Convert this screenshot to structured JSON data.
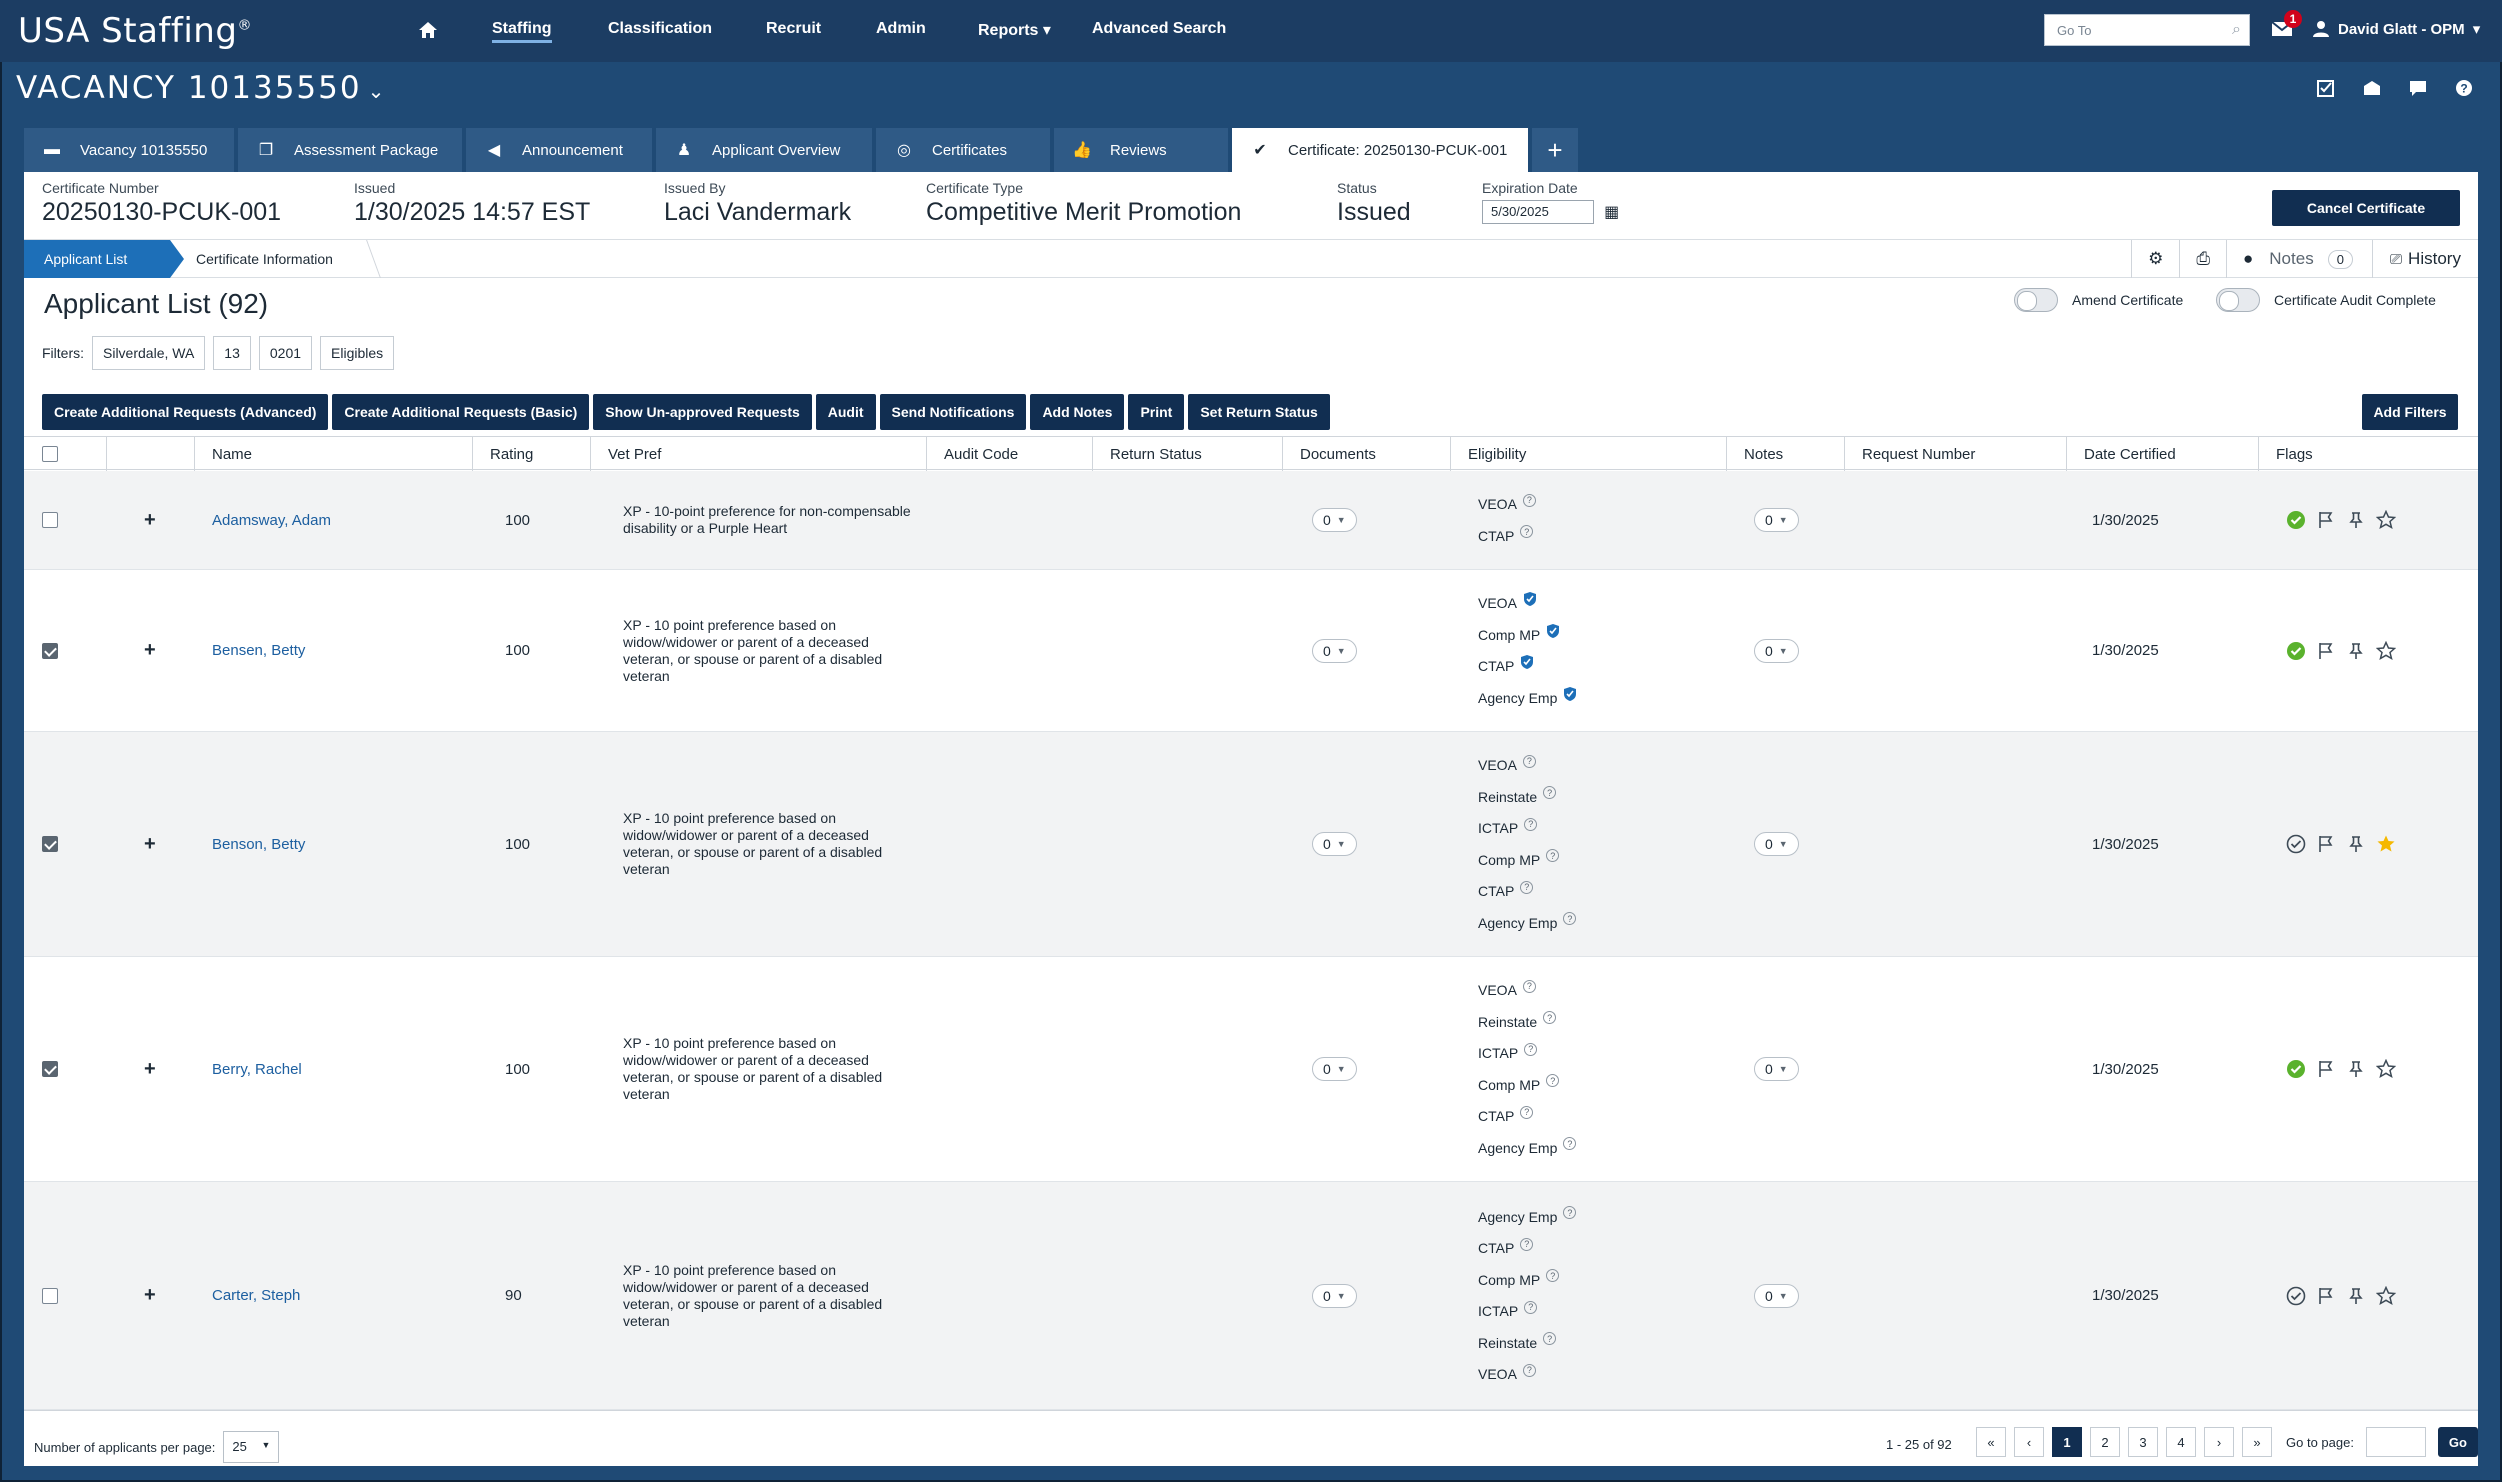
{
  "nav": {
    "brand": "USA Staffing",
    "brand_mark": "®",
    "items": [
      "Staffing",
      "Classification",
      "Recruit",
      "Admin",
      "Reports",
      "Advanced Search"
    ],
    "goto_placeholder": "Go To",
    "mail_count": "1",
    "user": "David Glatt - OPM"
  },
  "vacancy": {
    "title": "VACANCY 10135550"
  },
  "tabs": [
    {
      "label": "Vacancy 10135550",
      "icon": "briefcase-icon"
    },
    {
      "label": "Assessment Package",
      "icon": "copy-icon"
    },
    {
      "label": "Announcement",
      "icon": "megaphone-icon"
    },
    {
      "label": "Applicant Overview",
      "icon": "users-icon"
    },
    {
      "label": "Certificates",
      "icon": "check-circle-icon"
    },
    {
      "label": "Reviews",
      "icon": "thumbs-up-icon"
    },
    {
      "label": "Certificate: 20250130-PCUK-001",
      "icon": "check-badge-icon"
    }
  ],
  "cert": {
    "number_label": "Certificate Number",
    "number": "20250130-PCUK-001",
    "issued_label": "Issued",
    "issued": "1/30/2025 14:57 EST",
    "issued_by_label": "Issued By",
    "issued_by": "Laci Vandermark",
    "type_label": "Certificate Type",
    "type": "Competitive Merit Promotion",
    "status_label": "Status",
    "status": "Issued",
    "exp_label": "Expiration Date",
    "exp": "5/30/2025",
    "cancel": "Cancel Certificate"
  },
  "subnav": {
    "active": "Applicant List",
    "second": "Certificate Information",
    "notes_label": "Notes",
    "notes_count": "0",
    "history": "History"
  },
  "list": {
    "title": "Applicant List (92)",
    "amend": "Amend Certificate",
    "audit_complete": "Certificate Audit Complete",
    "filters_label": "Filters:",
    "filters": [
      "Silverdale, WA",
      "13",
      "0201",
      "Eligibles"
    ],
    "actions": [
      "Create Additional Requests (Advanced)",
      "Create Additional Requests (Basic)",
      "Show Un-approved Requests",
      "Audit",
      "Send Notifications",
      "Add Notes",
      "Print",
      "Set Return Status"
    ],
    "add_filters": "Add Filters"
  },
  "columns": [
    "Name",
    "Rating",
    "Vet Pref",
    "Audit Code",
    "Return Status",
    "Documents",
    "Eligibility",
    "Notes",
    "Request Number",
    "Date Certified",
    "Flags"
  ],
  "rows": [
    {
      "checked": false,
      "name": "Adamsway, Adam",
      "rating": "100",
      "vet": "XP - 10-point preference for non-compensable disability or a Purple Heart",
      "documents": "0",
      "notes": "0",
      "date": "1/30/2025",
      "elig": [
        {
          "t": "VEOA",
          "v": false
        },
        {
          "t": "CTAP",
          "v": false
        }
      ],
      "flag_check": "green",
      "star": false
    },
    {
      "checked": true,
      "name": "Bensen, Betty",
      "rating": "100",
      "vet": "XP - 10 point preference based on widow/widower or parent of a deceased veteran, or spouse or parent of a disabled veteran",
      "documents": "0",
      "notes": "0",
      "date": "1/30/2025",
      "elig": [
        {
          "t": "VEOA",
          "v": true
        },
        {
          "t": "Comp MP",
          "v": true
        },
        {
          "t": "CTAP",
          "v": true
        },
        {
          "t": "Agency Emp",
          "v": true
        }
      ],
      "flag_check": "green",
      "star": false
    },
    {
      "checked": true,
      "name": "Benson, Betty",
      "rating": "100",
      "vet": "XP - 10 point preference based on widow/widower or parent of a deceased veteran, or spouse or parent of a disabled veteran",
      "documents": "0",
      "notes": "0",
      "date": "1/30/2025",
      "elig": [
        {
          "t": "VEOA",
          "v": false
        },
        {
          "t": "Reinstate",
          "v": false
        },
        {
          "t": "ICTAP",
          "v": false
        },
        {
          "t": "Comp MP",
          "v": false
        },
        {
          "t": "CTAP",
          "v": false
        },
        {
          "t": "Agency Emp",
          "v": false
        }
      ],
      "flag_check": "outline",
      "star": true
    },
    {
      "checked": true,
      "name": "Berry, Rachel",
      "rating": "100",
      "vet": "XP - 10 point preference based on widow/widower or parent of a deceased veteran, or spouse or parent of a disabled veteran",
      "documents": "0",
      "notes": "0",
      "date": "1/30/2025",
      "elig": [
        {
          "t": "VEOA",
          "v": false
        },
        {
          "t": "Reinstate",
          "v": false
        },
        {
          "t": "ICTAP",
          "v": false
        },
        {
          "t": "Comp MP",
          "v": false
        },
        {
          "t": "CTAP",
          "v": false
        },
        {
          "t": "Agency Emp",
          "v": false
        }
      ],
      "flag_check": "green",
      "star": false
    },
    {
      "checked": false,
      "name": "Carter, Steph",
      "rating": "90",
      "vet": "XP - 10 point preference based on widow/widower or parent of a deceased veteran, or spouse or parent of a disabled veteran",
      "documents": "0",
      "notes": "0",
      "date": "1/30/2025",
      "elig": [
        {
          "t": "Agency Emp",
          "v": false
        },
        {
          "t": "CTAP",
          "v": false
        },
        {
          "t": "Comp MP",
          "v": false
        },
        {
          "t": "ICTAP",
          "v": false
        },
        {
          "t": "Reinstate",
          "v": false
        },
        {
          "t": "VEOA",
          "v": false
        }
      ],
      "flag_check": "outline",
      "star": false
    }
  ],
  "footer": {
    "per_page_label": "Number of applicants per page:",
    "per_page": "25",
    "range": "1 - 25 of 92",
    "pages": [
      "1",
      "2",
      "3",
      "4"
    ],
    "first": "«",
    "prev": "‹",
    "next": "›",
    "last": "»",
    "goto_label": "Go to page:",
    "go": "Go"
  },
  "colors": {
    "brand": "#1c3d63",
    "button": "#112e51",
    "accent": "#1d6fb8",
    "check_green": "#5ab22d",
    "star_gold": "#f5b800",
    "shield_blue": "#1d6fb8"
  }
}
